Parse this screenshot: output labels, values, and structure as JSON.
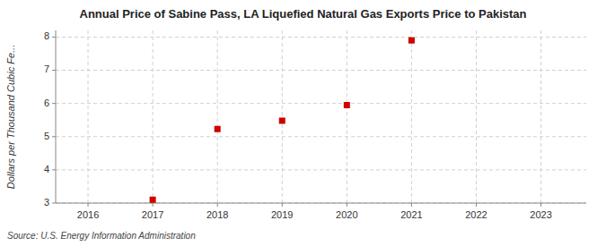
{
  "chart_data": {
    "type": "scatter",
    "title": "Annual Price of Sabine Pass, LA Liquefied Natural Gas Exports Price to Pakistan",
    "y_label": "Dollars per Thousand Cubic Fe...",
    "source": "Source: U.S. Energy Information Administration",
    "x": [
      2017,
      2018,
      2019,
      2020,
      2021
    ],
    "values": [
      3.1,
      5.23,
      5.48,
      5.95,
      7.9
    ],
    "color": "#cc0000",
    "marker": "square",
    "xlim": [
      2015.5,
      2023.7
    ],
    "ylim": [
      3.0,
      8.2
    ],
    "xticks": [
      2016,
      2017,
      2018,
      2019,
      2020,
      2021,
      2022,
      2023
    ],
    "yticks": [
      3,
      4,
      5,
      6,
      7,
      8
    ],
    "grid": true
  }
}
